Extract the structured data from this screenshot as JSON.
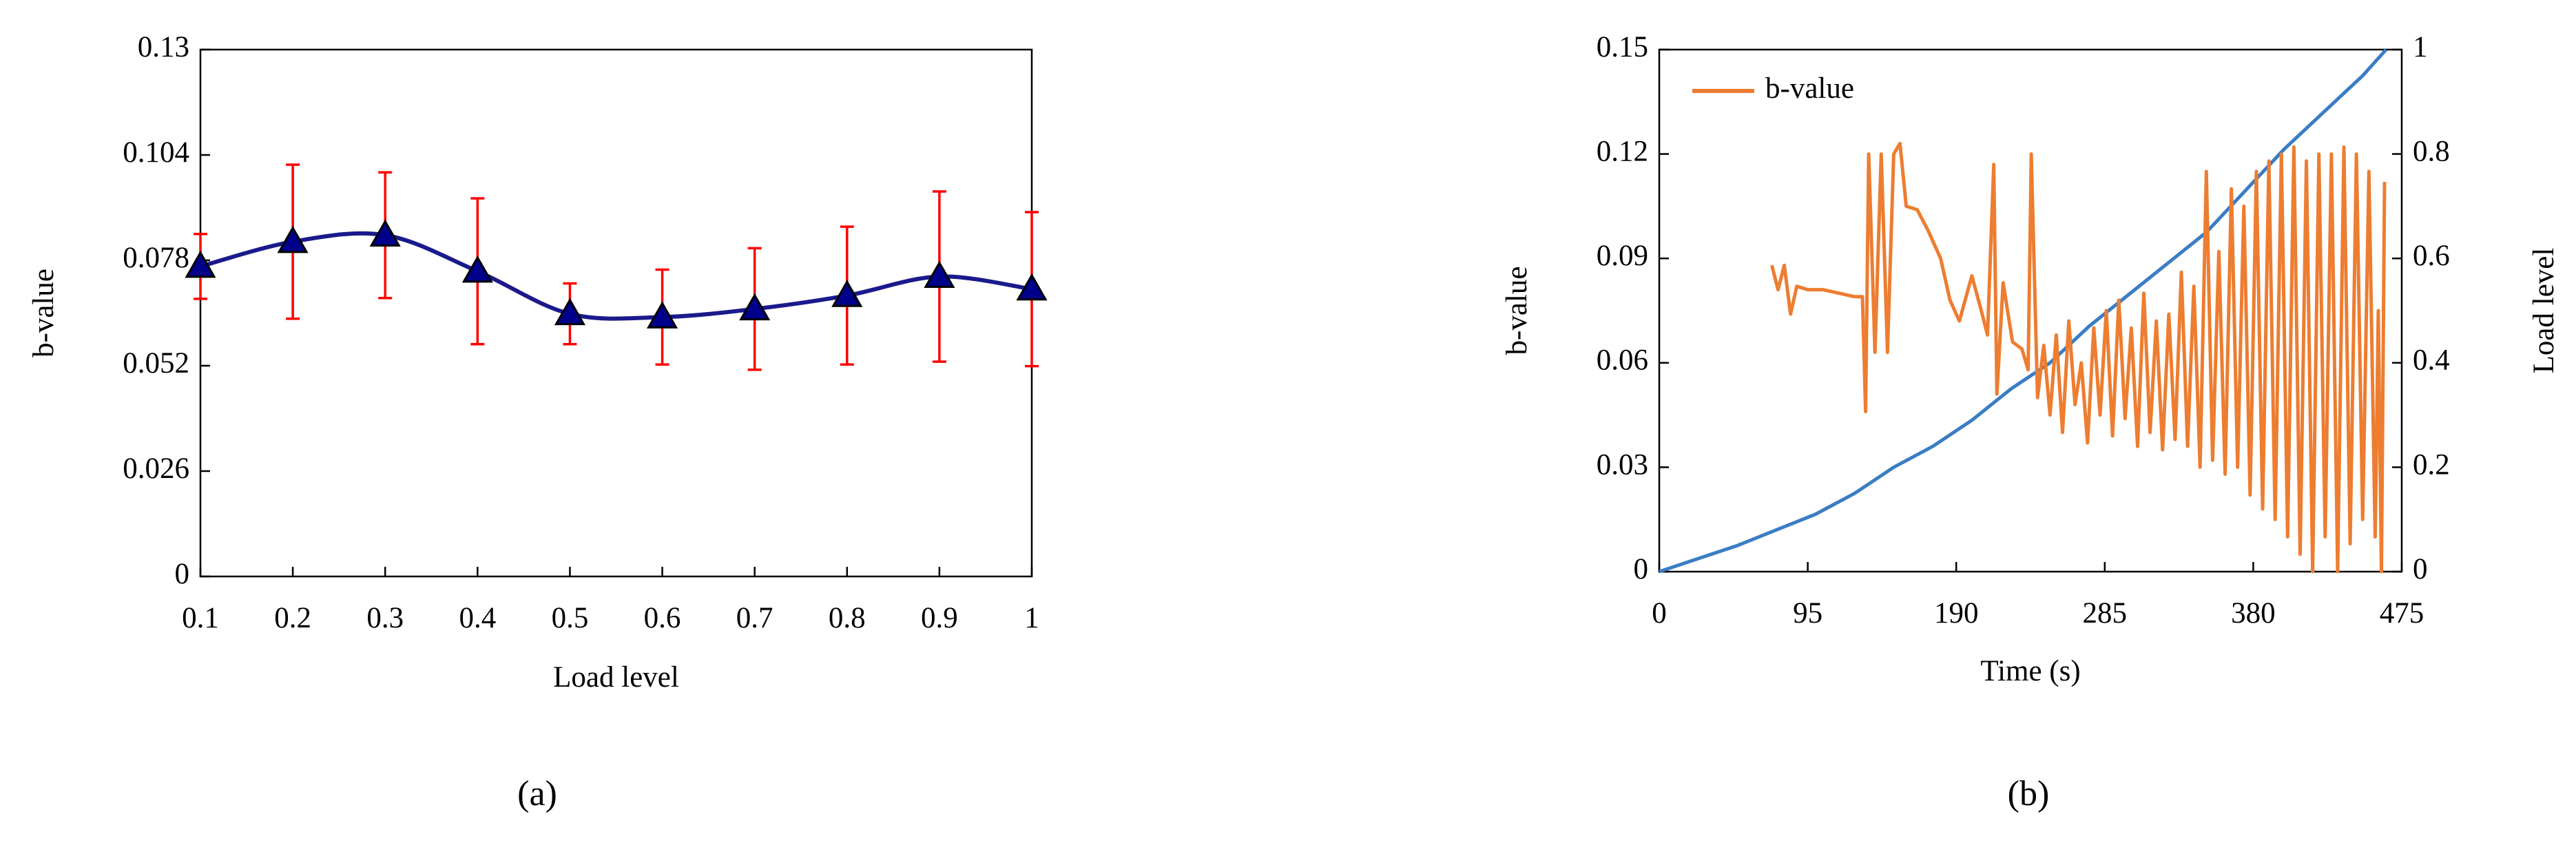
{
  "chart_data": [
    {
      "type": "line",
      "panel_label": "(a)",
      "x_label": "Load level",
      "y_label": "b-value",
      "x": [
        0.1,
        0.2,
        0.3,
        0.4,
        0.5,
        0.6,
        0.7,
        0.8,
        0.9,
        1
      ],
      "xlim": [
        0.1,
        1
      ],
      "xticks": [
        0.1,
        0.2,
        0.3,
        0.4,
        0.5,
        0.6,
        0.7,
        0.8,
        0.9,
        1
      ],
      "ylim": [
        0,
        0.13
      ],
      "yticks": [
        0,
        0.026,
        0.052,
        0.078,
        0.104,
        0.13
      ],
      "smooth": true,
      "marker": "triangle",
      "error_color": "#ff0000",
      "marker_color": "#00008b",
      "series": [
        {
          "color": "#1a1a8c",
          "values": [
            0.0765,
            0.0826,
            0.0842,
            0.0753,
            0.0648,
            0.064,
            0.066,
            0.0693,
            0.074,
            0.0709
          ],
          "errors": [
            0.008,
            0.019,
            0.0155,
            0.018,
            0.0075,
            0.0117,
            0.015,
            0.017,
            0.021,
            0.019
          ]
        }
      ]
    },
    {
      "type": "line",
      "panel_label": "(b)",
      "x_label": "Time (s)",
      "y_label": "b-value",
      "y2_label": "Load level",
      "xlim": [
        0,
        475
      ],
      "xticks": [
        0,
        95,
        190,
        285,
        380,
        475
      ],
      "ylim": [
        0,
        0.15
      ],
      "yticks": [
        0,
        0.03,
        0.06,
        0.09,
        0.12,
        0.15
      ],
      "y2lim": [
        0,
        1
      ],
      "y2ticks": [
        0,
        0.2,
        0.4,
        0.6,
        0.8,
        1
      ],
      "legend": "upper left",
      "series": [
        {
          "color": "#3a7dc4",
          "axis": "y2",
          "x": [
            0,
            25,
            50,
            75,
            100,
            125,
            150,
            175,
            200,
            225,
            250,
            275,
            300,
            325,
            350,
            375,
            400,
            425,
            450,
            465
          ],
          "values": [
            0,
            0.025,
            0.05,
            0.08,
            0.11,
            0.15,
            0.2,
            0.24,
            0.29,
            0.35,
            0.4,
            0.47,
            0.53,
            0.59,
            0.65,
            0.73,
            0.81,
            0.88,
            0.95,
            1
          ]
        },
        {
          "name": "b-value",
          "color": "#ed7d31",
          "x": [
            72,
            76,
            80,
            84,
            88,
            95,
            105,
            115,
            125,
            130,
            132,
            134,
            138,
            142,
            146,
            150,
            154,
            158,
            165,
            172,
            180,
            186,
            192,
            200,
            206,
            210,
            214,
            216,
            220,
            226,
            232,
            236,
            238,
            242,
            246,
            250,
            254,
            258,
            262,
            266,
            270,
            274,
            278,
            282,
            286,
            290,
            294,
            298,
            302,
            306,
            310,
            314,
            318,
            322,
            326,
            330,
            334,
            338,
            342,
            346,
            350,
            354,
            358,
            362,
            366,
            370,
            374,
            378,
            382,
            386,
            390,
            394,
            398,
            402,
            406,
            410,
            414,
            418,
            422,
            426,
            430,
            434,
            438,
            442,
            446,
            450,
            454,
            458,
            460,
            462,
            464
          ],
          "values": [
            0.088,
            0.081,
            0.088,
            0.074,
            0.082,
            0.081,
            0.081,
            0.08,
            0.079,
            0.079,
            0.046,
            0.12,
            0.063,
            0.12,
            0.063,
            0.12,
            0.123,
            0.105,
            0.104,
            0.098,
            0.09,
            0.078,
            0.072,
            0.085,
            0.075,
            0.068,
            0.117,
            0.051,
            0.083,
            0.066,
            0.064,
            0.058,
            0.12,
            0.05,
            0.065,
            0.045,
            0.068,
            0.04,
            0.072,
            0.048,
            0.06,
            0.037,
            0.07,
            0.045,
            0.075,
            0.039,
            0.078,
            0.044,
            0.07,
            0.036,
            0.08,
            0.04,
            0.072,
            0.035,
            0.074,
            0.038,
            0.086,
            0.036,
            0.082,
            0.03,
            0.115,
            0.032,
            0.092,
            0.028,
            0.11,
            0.03,
            0.105,
            0.022,
            0.115,
            0.018,
            0.118,
            0.015,
            0.12,
            0.01,
            0.122,
            0.005,
            0.118,
            0,
            0.12,
            0.01,
            0.12,
            0,
            0.122,
            0.008,
            0.12,
            0.015,
            0.115,
            0.01,
            0.075,
            0,
            0.112
          ]
        }
      ]
    }
  ]
}
